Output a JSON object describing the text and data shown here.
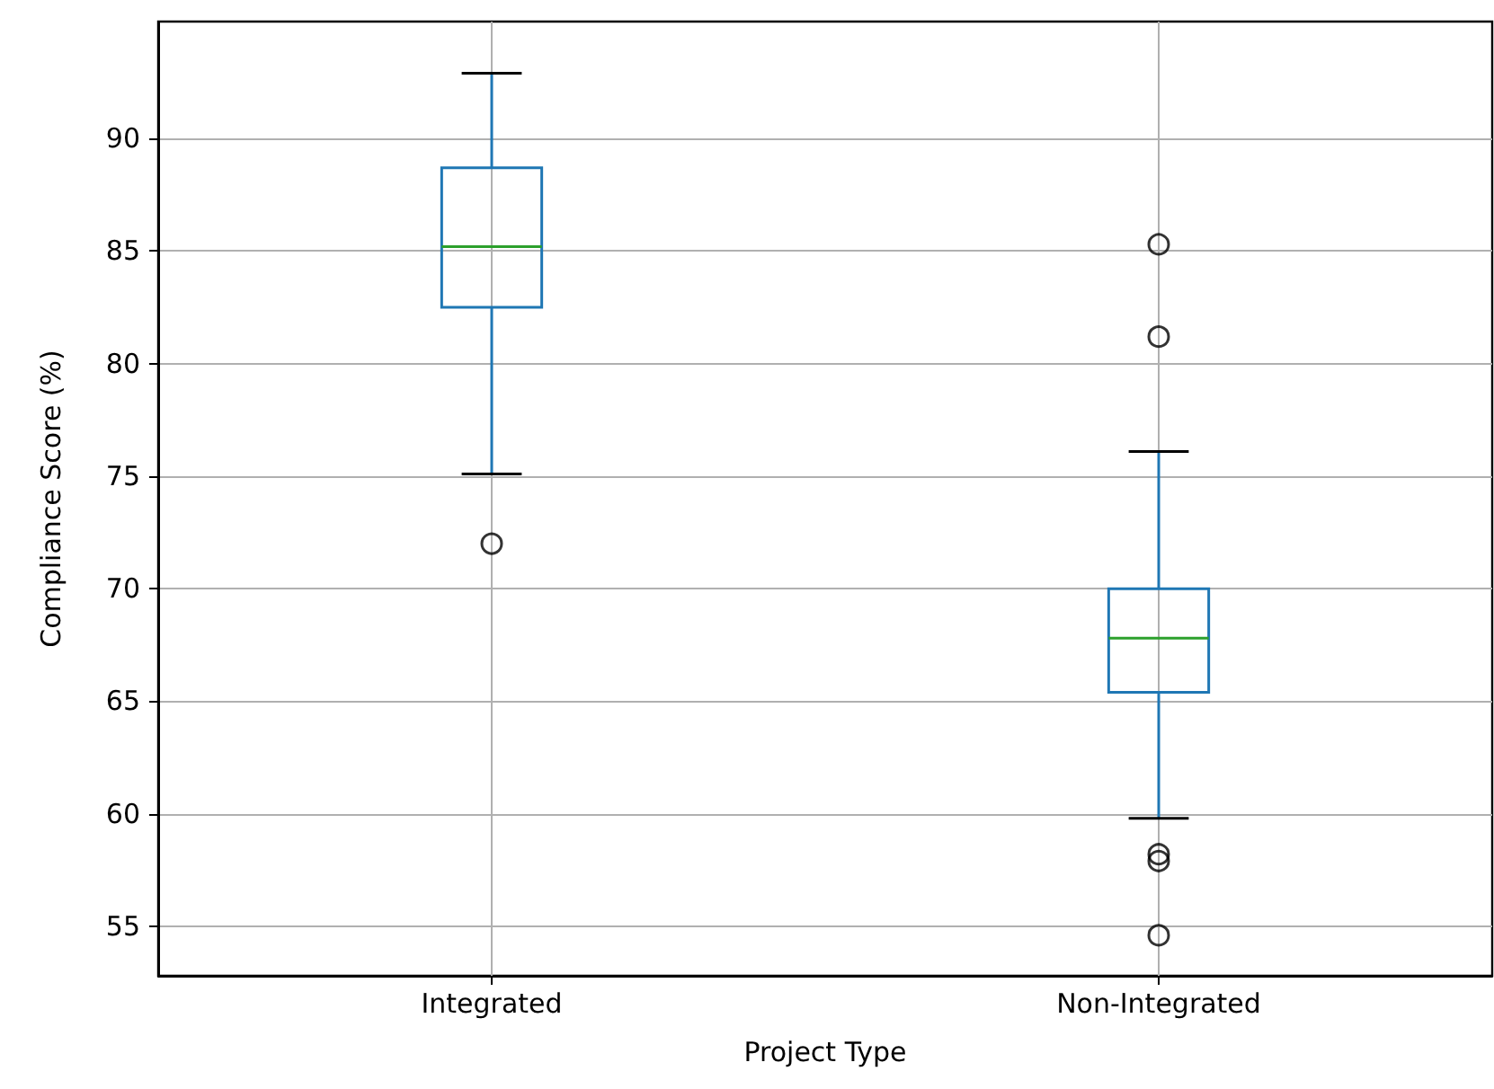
{
  "chart_data": {
    "type": "box",
    "xlabel": "Project Type",
    "ylabel": "Compliance Score (%)",
    "categories": [
      "Integrated",
      "Non-Integrated"
    ],
    "boxes": [
      {
        "low": 75.1,
        "q1": 82.5,
        "median": 85.2,
        "q3": 88.7,
        "high": 92.9,
        "outliers": [
          72.0
        ]
      },
      {
        "low": 59.8,
        "q1": 65.4,
        "median": 67.8,
        "q3": 70.0,
        "high": 76.1,
        "outliers": [
          85.3,
          81.2,
          58.2,
          57.9,
          54.6
        ]
      }
    ],
    "color": "#1f77b4",
    "ylim": [
      52.8,
      95.2
    ],
    "yticks": [
      55,
      60,
      65,
      70,
      75,
      80,
      85,
      90
    ],
    "grid": true
  }
}
